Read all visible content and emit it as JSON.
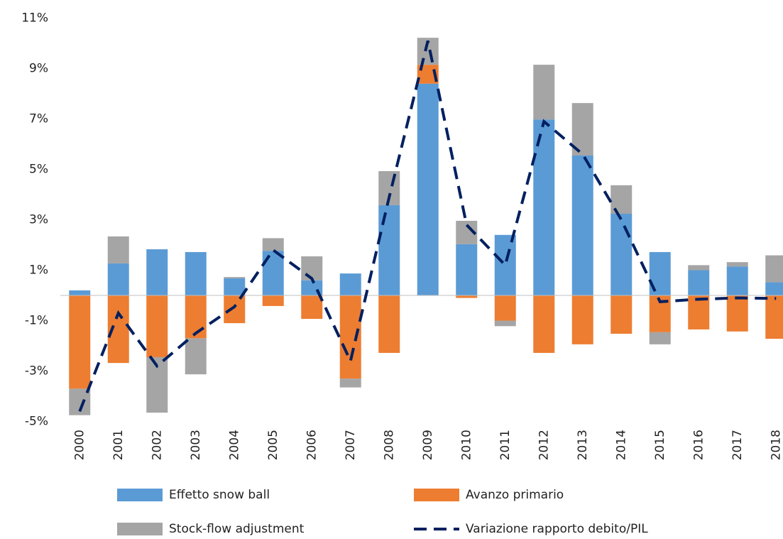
{
  "chart_data": {
    "type": "bar",
    "categories": [
      "2000",
      "2001",
      "2002",
      "2003",
      "2004",
      "2005",
      "2006",
      "2007",
      "2008",
      "2009",
      "2010",
      "2011",
      "2012",
      "2013",
      "2014",
      "2015",
      "2016",
      "2017",
      "2018"
    ],
    "series": [
      {
        "name": "Effetto snow ball",
        "color": "#5b9bd5",
        "values": [
          0.2,
          1.27,
          1.83,
          1.72,
          0.68,
          1.77,
          0.6,
          0.87,
          3.58,
          8.4,
          2.03,
          2.4,
          6.98,
          5.55,
          3.24,
          1.72,
          1.0,
          1.15,
          0.52
        ]
      },
      {
        "name": "Avanzo primario",
        "color": "#ed7d31",
        "values": [
          -3.7,
          -2.68,
          -2.45,
          -1.7,
          -1.1,
          -0.42,
          -0.93,
          -3.3,
          -2.28,
          0.75,
          -0.1,
          -1.0,
          -2.28,
          -1.94,
          -1.52,
          -1.46,
          -1.35,
          -1.43,
          -1.72
        ]
      },
      {
        "name": "Stock-flow adjustment",
        "color": "#a5a5a5",
        "values": [
          -1.05,
          1.07,
          -2.2,
          -1.43,
          0.05,
          0.5,
          0.95,
          -0.35,
          1.35,
          1.07,
          0.93,
          -0.22,
          2.17,
          2.08,
          1.13,
          -0.48,
          0.2,
          0.17,
          1.07
        ]
      },
      {
        "name": "Variazione rapporto debito/PIL",
        "color": "#002060",
        "type": "line",
        "values": [
          -4.6,
          -0.7,
          -2.8,
          -1.5,
          -0.45,
          1.8,
          0.67,
          -2.6,
          3.9,
          10.1,
          2.8,
          1.2,
          6.9,
          5.6,
          3.0,
          -0.25,
          -0.15,
          -0.1,
          -0.12
        ]
      }
    ],
    "ylim": [
      -5,
      11
    ],
    "yticks": [
      {
        "value": 11,
        "label": "11%"
      },
      {
        "value": 9,
        "label": "9%"
      },
      {
        "value": 7,
        "label": "7%"
      },
      {
        "value": 5,
        "label": "5%"
      },
      {
        "value": 3,
        "label": "3%"
      },
      {
        "value": 1,
        "label": "1%"
      },
      {
        "value": -1,
        "label": "-1%"
      },
      {
        "value": -3,
        "label": "-3%"
      },
      {
        "value": -5,
        "label": "-5%"
      }
    ],
    "grid": false,
    "legend": "bottom"
  }
}
